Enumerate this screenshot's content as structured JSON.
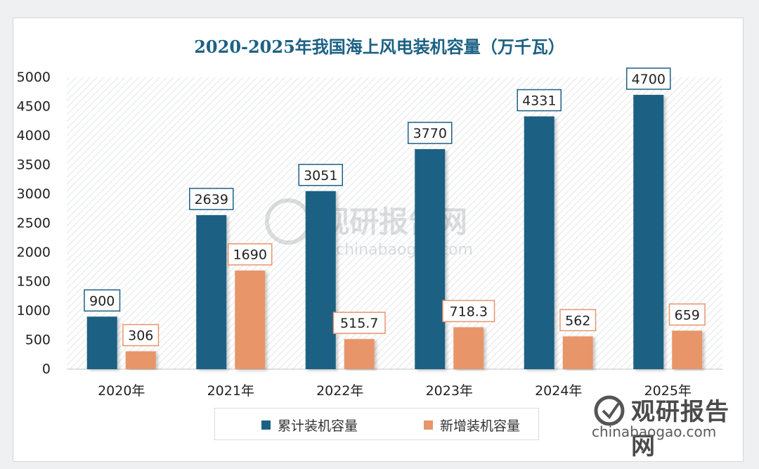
{
  "chart_data": {
    "type": "bar",
    "title": "2020-2025年我国海上风电装机容量（万千瓦）",
    "categories": [
      "2020年",
      "2021年",
      "2022年",
      "2023年",
      "2024年",
      "2025年"
    ],
    "series": [
      {
        "name": "累计装机容量",
        "color": "#1c6184",
        "values": [
          900,
          2639,
          3051,
          3770,
          4331,
          4700
        ],
        "labels": [
          "900",
          "2639",
          "3051",
          "3770",
          "4331",
          "4700"
        ]
      },
      {
        "name": "新增装机容量",
        "color": "#e8956b",
        "values": [
          306,
          1690,
          515.7,
          718.3,
          562,
          659
        ],
        "labels": [
          "306",
          "1690",
          "515.7",
          "718.3",
          "562",
          "659"
        ]
      }
    ],
    "yticks": [
      "0",
      "500",
      "1000",
      "1500",
      "2000",
      "2500",
      "3000",
      "3500",
      "4000",
      "4500",
      "5000"
    ],
    "ylim": [
      0,
      5000
    ],
    "legend_position": "bottom",
    "label_border_colors": {
      "cumulative": "#1c6184",
      "new": "#e8956b"
    }
  },
  "watermark": {
    "cn": "观研报告网",
    "en": "chinabaogao.com"
  }
}
